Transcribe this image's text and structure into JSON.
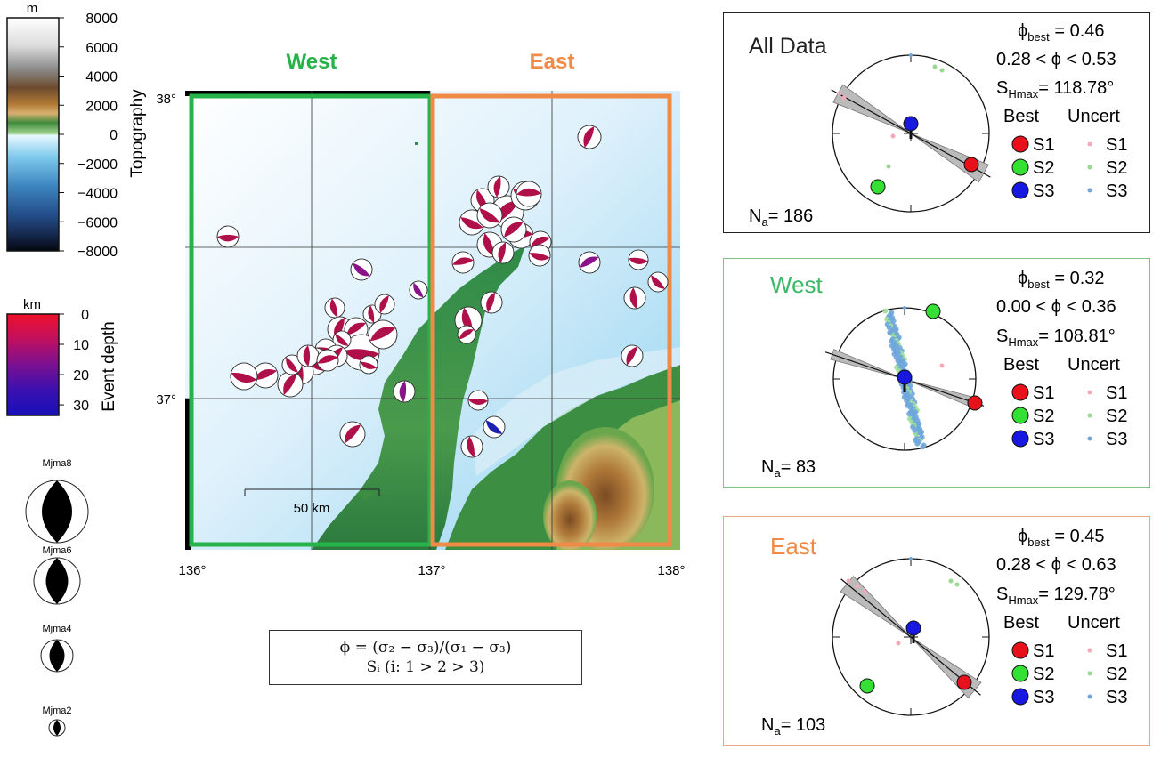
{
  "topography_scale": {
    "unit": "m",
    "title": "Topography",
    "ticks": [
      "8000",
      "6000",
      "4000",
      "2000",
      "0",
      "−2000",
      "−4000",
      "−6000",
      "−8000"
    ]
  },
  "depth_scale": {
    "unit": "km",
    "title": "Event depth",
    "ticks": [
      "0",
      "10",
      "20",
      "30"
    ]
  },
  "magnitude_legend": [
    "Mjma8",
    "Mjma6",
    "Mjma4",
    "Mjma2"
  ],
  "map": {
    "west_label": "West",
    "east_label": "East",
    "lat_labels": [
      "38°",
      "37°"
    ],
    "lon_labels": [
      "136°",
      "137°",
      "138°"
    ],
    "scale_bar": "50 km",
    "colors": {
      "west": "#26b34a",
      "east": "#ef8a47"
    }
  },
  "formula": {
    "line1": "ϕ = (σ₂ − σ₃)/(σ₁ − σ₃)",
    "line2": "Sᵢ  (i: 1 > 2 > 3)"
  },
  "stereonet_legend": {
    "best": "Best",
    "uncert": "Uncert",
    "s1": "S1",
    "s2": "S2",
    "s3": "S3",
    "colors": {
      "s1": "#e8101a",
      "s2": "#33e033",
      "s3": "#1818e0"
    }
  },
  "panels": [
    {
      "title": "All Data",
      "phi_best": "0.46",
      "phi_range_lo": "0.28",
      "phi_range_hi": "0.53",
      "shmax": "118.78°",
      "na": "186"
    },
    {
      "title": "West",
      "phi_best": "0.32",
      "phi_range_lo": "0.00",
      "phi_range_hi": "0.36",
      "shmax": "108.81°",
      "na": "83"
    },
    {
      "title": "East",
      "phi_best": "0.45",
      "phi_range_lo": "0.28",
      "phi_range_hi": "0.63",
      "shmax": "129.78°",
      "na": "103"
    }
  ]
}
